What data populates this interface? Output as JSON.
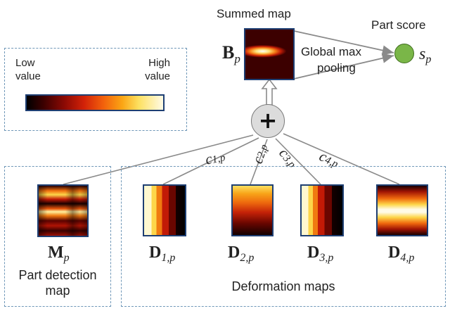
{
  "legend": {
    "low_label": "Low\nvalue",
    "high_label": "High\nvalue"
  },
  "summed_map": {
    "title": "Summed map",
    "symbol": "B",
    "subscript": "p"
  },
  "pooling": {
    "line1": "Global max",
    "line2": "pooling"
  },
  "part_score": {
    "title": "Part score",
    "symbol": "s",
    "subscript": "p",
    "color": "#7ab648"
  },
  "sum_node": {
    "symbol": "+"
  },
  "weights": [
    {
      "symbol": "c",
      "subscript": "1,p"
    },
    {
      "symbol": "c",
      "subscript": "2,p"
    },
    {
      "symbol": "c",
      "subscript": "3,p"
    },
    {
      "symbol": "c",
      "subscript": "4,p"
    }
  ],
  "detection": {
    "symbol": "M",
    "subscript": "p",
    "label_line1": "Part detection",
    "label_line2": "map"
  },
  "deformation": {
    "label": "Deformation maps",
    "maps": [
      {
        "symbol": "D",
        "subscript": "1,p"
      },
      {
        "symbol": "D",
        "subscript": "2,p"
      },
      {
        "symbol": "D",
        "subscript": "3,p"
      },
      {
        "symbol": "D",
        "subscript": "4,p"
      }
    ]
  },
  "colors": {
    "frame": "#1e3f73",
    "dashed": "#6f97b8",
    "arrow": "#8a8a8a",
    "node_fill": "#dcdcdc"
  }
}
